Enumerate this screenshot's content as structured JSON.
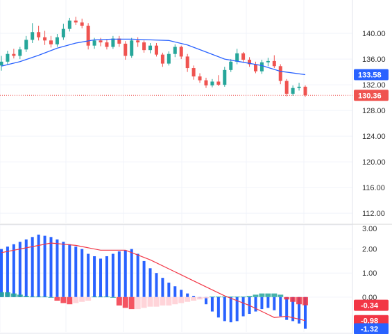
{
  "chart_data": [
    {
      "type": "candlestick",
      "title": "",
      "ylim": [
        110.5,
        145.2
      ],
      "y_ticks": [
        "140.00",
        "136.00",
        "132.00",
        "128.00",
        "124.00",
        "120.00",
        "116.00",
        "112.00"
      ],
      "grid": true,
      "colors": {
        "up": "#26a69a",
        "down": "#ef5350",
        "ma": "#2962ff"
      },
      "ohlc": [
        [
          135.0,
          136.5,
          134.2,
          135.6
        ],
        [
          135.6,
          137.3,
          135.2,
          136.8
        ],
        [
          136.8,
          137.6,
          136.1,
          136.5
        ],
        [
          136.5,
          137.9,
          136.0,
          137.5
        ],
        [
          137.5,
          139.6,
          137.1,
          139.0
        ],
        [
          139.0,
          141.6,
          138.5,
          140.2
        ],
        [
          140.2,
          141.2,
          138.9,
          139.4
        ],
        [
          139.4,
          140.4,
          138.2,
          138.9
        ],
        [
          138.9,
          139.6,
          137.8,
          138.3
        ],
        [
          138.3,
          139.9,
          137.9,
          139.4
        ],
        [
          139.4,
          141.5,
          139.0,
          140.7
        ],
        [
          140.7,
          142.4,
          140.3,
          142.0
        ],
        [
          142.0,
          142.6,
          141.3,
          141.7
        ],
        [
          141.7,
          142.3,
          140.8,
          141.2
        ],
        [
          141.2,
          141.6,
          137.5,
          138.1
        ],
        [
          138.1,
          139.3,
          137.6,
          138.9
        ],
        [
          138.9,
          139.3,
          138.0,
          138.6
        ],
        [
          138.6,
          139.0,
          137.5,
          137.9
        ],
        [
          137.9,
          139.6,
          137.6,
          139.2
        ],
        [
          139.2,
          139.6,
          137.9,
          138.4
        ],
        [
          138.4,
          138.8,
          135.9,
          136.5
        ],
        [
          136.5,
          139.3,
          136.2,
          138.9
        ],
        [
          138.9,
          139.4,
          137.9,
          138.6
        ],
        [
          138.6,
          138.9,
          137.0,
          137.4
        ],
        [
          137.4,
          138.5,
          136.9,
          138.1
        ],
        [
          138.1,
          138.5,
          136.4,
          136.7
        ],
        [
          136.7,
          137.0,
          134.8,
          135.3
        ],
        [
          135.3,
          137.2,
          135.0,
          136.8
        ],
        [
          136.8,
          138.3,
          136.3,
          137.9
        ],
        [
          137.9,
          138.1,
          136.0,
          136.4
        ],
        [
          136.4,
          136.8,
          134.0,
          134.6
        ],
        [
          134.6,
          135.0,
          132.8,
          133.3
        ],
        [
          133.3,
          133.8,
          132.3,
          132.7
        ],
        [
          132.7,
          133.1,
          131.5,
          131.9
        ],
        [
          131.9,
          132.9,
          131.6,
          132.5
        ],
        [
          132.5,
          133.5,
          131.8,
          132.0
        ],
        [
          132.0,
          134.8,
          131.7,
          134.3
        ],
        [
          134.3,
          136.0,
          134.0,
          135.6
        ],
        [
          135.6,
          137.6,
          135.2,
          136.9
        ],
        [
          136.9,
          137.1,
          135.5,
          135.9
        ],
        [
          135.9,
          136.3,
          134.8,
          135.2
        ],
        [
          135.2,
          135.6,
          133.8,
          134.1
        ],
        [
          134.1,
          135.9,
          133.7,
          135.5
        ],
        [
          135.5,
          136.2,
          134.9,
          135.7
        ],
        [
          135.7,
          136.6,
          134.6,
          134.9
        ],
        [
          134.9,
          135.2,
          132.1,
          132.6
        ],
        [
          132.6,
          132.9,
          130.2,
          130.6
        ],
        [
          130.6,
          131.9,
          130.3,
          131.5
        ],
        [
          131.5,
          132.3,
          131.1,
          131.7
        ],
        [
          131.7,
          131.9,
          130.1,
          130.36
        ]
      ],
      "ma": [
        [
          0,
          134.9
        ],
        [
          3,
          135.6
        ],
        [
          6,
          136.6
        ],
        [
          9,
          137.7
        ],
        [
          12,
          138.5
        ],
        [
          15,
          139.0
        ],
        [
          18,
          139.1
        ],
        [
          21,
          139.1
        ],
        [
          24,
          139.0
        ],
        [
          27,
          138.9
        ],
        [
          30,
          138.2
        ],
        [
          33,
          137.1
        ],
        [
          36,
          136.0
        ],
        [
          39,
          135.5
        ],
        [
          42,
          135.0
        ],
        [
          45,
          134.1
        ],
        [
          49,
          133.58
        ]
      ],
      "last_price_label": "130.36",
      "ma_label": "133.58"
    },
    {
      "type": "bar+line",
      "title": "",
      "ylim": [
        -1.45,
        3.0
      ],
      "y_ticks": [
        "3.00",
        "2.00",
        "1.00",
        "0.00"
      ],
      "grid": true,
      "colors": {
        "macd": "#2962ff",
        "signal": "#f23645",
        "hist_pos": "#26a69a",
        "hist_neg_strong": "#f23645",
        "hist_neg_weak": "#ffcdd2"
      },
      "macd": [
        2.0,
        2.1,
        2.2,
        2.3,
        2.4,
        2.5,
        2.6,
        2.55,
        2.5,
        2.4,
        2.3,
        2.2,
        2.1,
        2.0,
        1.8,
        1.7,
        1.6,
        1.7,
        1.8,
        1.9,
        1.95,
        2.0,
        1.8,
        1.5,
        1.2,
        1.0,
        0.8,
        0.6,
        0.45,
        0.3,
        0.15,
        0.05,
        -0.05,
        -0.3,
        -0.6,
        -0.85,
        -1.0,
        -1.05,
        -1.0,
        -0.8,
        -0.7,
        -0.6,
        -0.5,
        -0.45,
        -0.55,
        -0.8,
        -0.95,
        -1.0,
        -1.1,
        -1.32
      ],
      "signal": [
        [
          0,
          1.85
        ],
        [
          4,
          2.05
        ],
        [
          8,
          2.25
        ],
        [
          12,
          2.15
        ],
        [
          16,
          1.95
        ],
        [
          20,
          1.95
        ],
        [
          24,
          1.55
        ],
        [
          28,
          1.05
        ],
        [
          32,
          0.55
        ],
        [
          36,
          0.05
        ],
        [
          40,
          -0.35
        ],
        [
          44,
          -0.85
        ],
        [
          46,
          -0.8
        ],
        [
          49,
          -0.98
        ]
      ],
      "histogram": [
        0.2,
        0.2,
        0.15,
        0.1,
        0.05,
        0.02,
        0.02,
        0.02,
        0.0,
        -0.15,
        -0.25,
        -0.3,
        -0.25,
        -0.2,
        -0.15,
        0.02,
        0.02,
        0.02,
        0.0,
        -0.35,
        -0.45,
        -0.5,
        -0.5,
        -0.45,
        -0.4,
        -0.4,
        -0.35,
        -0.35,
        -0.3,
        -0.25,
        -0.2,
        -0.15,
        -0.1,
        -0.05,
        0.02,
        0.02,
        0.02,
        0.02,
        0.02,
        0.02,
        0.05,
        0.1,
        0.15,
        0.15,
        0.15,
        0.1,
        -0.1,
        -0.2,
        -0.3,
        -0.34
      ],
      "value_labels": [
        "-0.34",
        "-0.98",
        "-1.32"
      ]
    }
  ]
}
